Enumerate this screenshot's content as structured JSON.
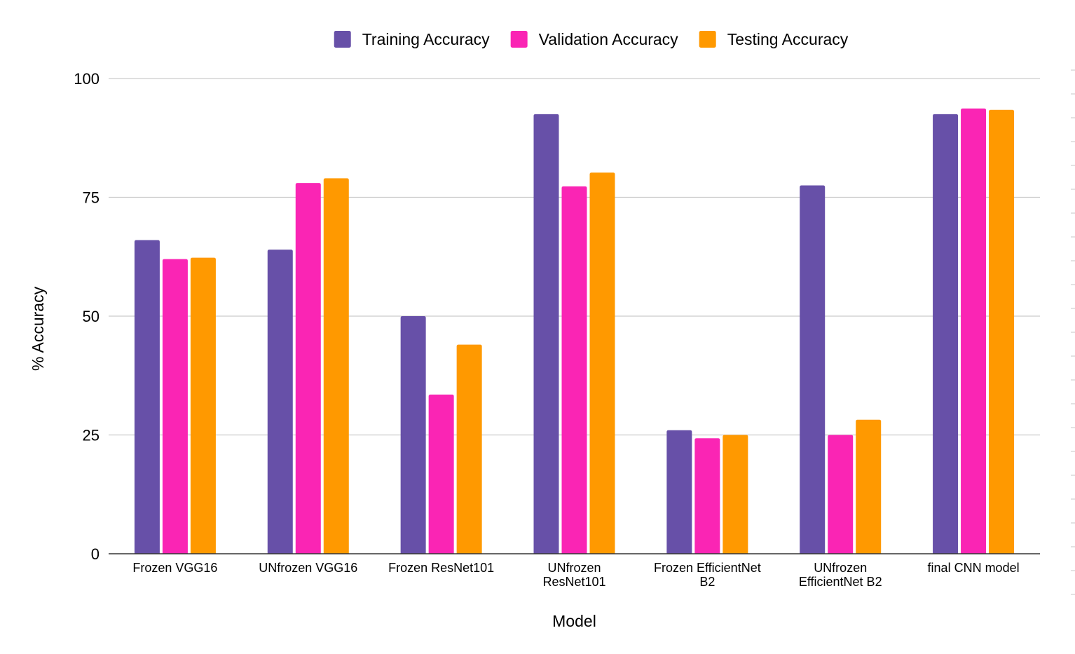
{
  "chart_data": {
    "type": "bar",
    "title": "",
    "xlabel": "Model",
    "ylabel": "% Accuracy",
    "ylim": [
      0,
      100
    ],
    "yticks": [
      0,
      25,
      50,
      75,
      100
    ],
    "grid": true,
    "legend_position": "top-center",
    "categories": [
      [
        "Frozen VGG16"
      ],
      [
        "UNfrozen VGG16"
      ],
      [
        "Frozen ResNet101"
      ],
      [
        "UNfrozen",
        "ResNet101"
      ],
      [
        "Frozen EfficientNet",
        "B2"
      ],
      [
        "UNfrozen",
        "EfficientNet B2"
      ],
      [
        "final CNN model"
      ]
    ],
    "series": [
      {
        "name": "Training Accuracy",
        "color": "#6750a8",
        "values": [
          66,
          64,
          50,
          92.5,
          26,
          77.5,
          92.5
        ]
      },
      {
        "name": "Validation Accuracy",
        "color": "#fa25b4",
        "values": [
          62,
          78,
          33.5,
          77.3,
          24.3,
          25,
          93.7
        ]
      },
      {
        "name": "Testing Accuracy",
        "color": "#ff9900",
        "values": [
          62.3,
          79,
          44,
          80.2,
          25,
          28.2,
          93.4
        ]
      }
    ]
  }
}
